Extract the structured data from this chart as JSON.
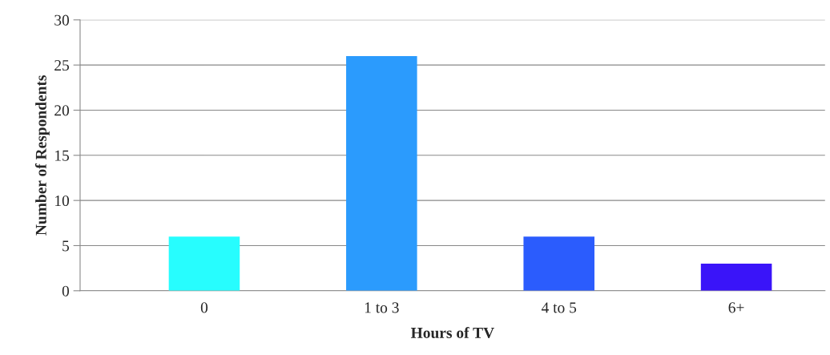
{
  "chart_data": {
    "type": "bar",
    "xlabel": "Hours of TV",
    "ylabel": "Number of Respondents",
    "categories": [
      "0",
      "1 to 3",
      "4 to 5",
      "6+"
    ],
    "values": [
      6,
      26,
      6,
      3
    ],
    "colors": [
      "#27fdfe",
      "#2b9bfd",
      "#2b5cfd",
      "#3a14f9"
    ],
    "ylim": [
      0,
      30
    ],
    "yticks": [
      0,
      5,
      10,
      15,
      20,
      25,
      30
    ],
    "grid": "y",
    "legend": false
  }
}
